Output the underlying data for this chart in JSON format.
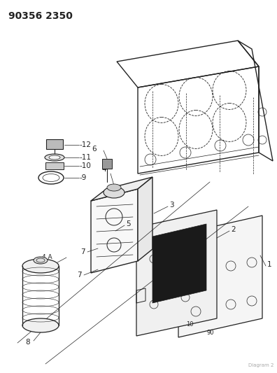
{
  "title": "90356 2350",
  "background_color": "#ffffff",
  "line_color": "#222222",
  "label_color": "#222222",
  "title_fontsize": 10,
  "label_fontsize": 7.5,
  "fig_width": 3.96,
  "fig_height": 5.33,
  "dpi": 100
}
